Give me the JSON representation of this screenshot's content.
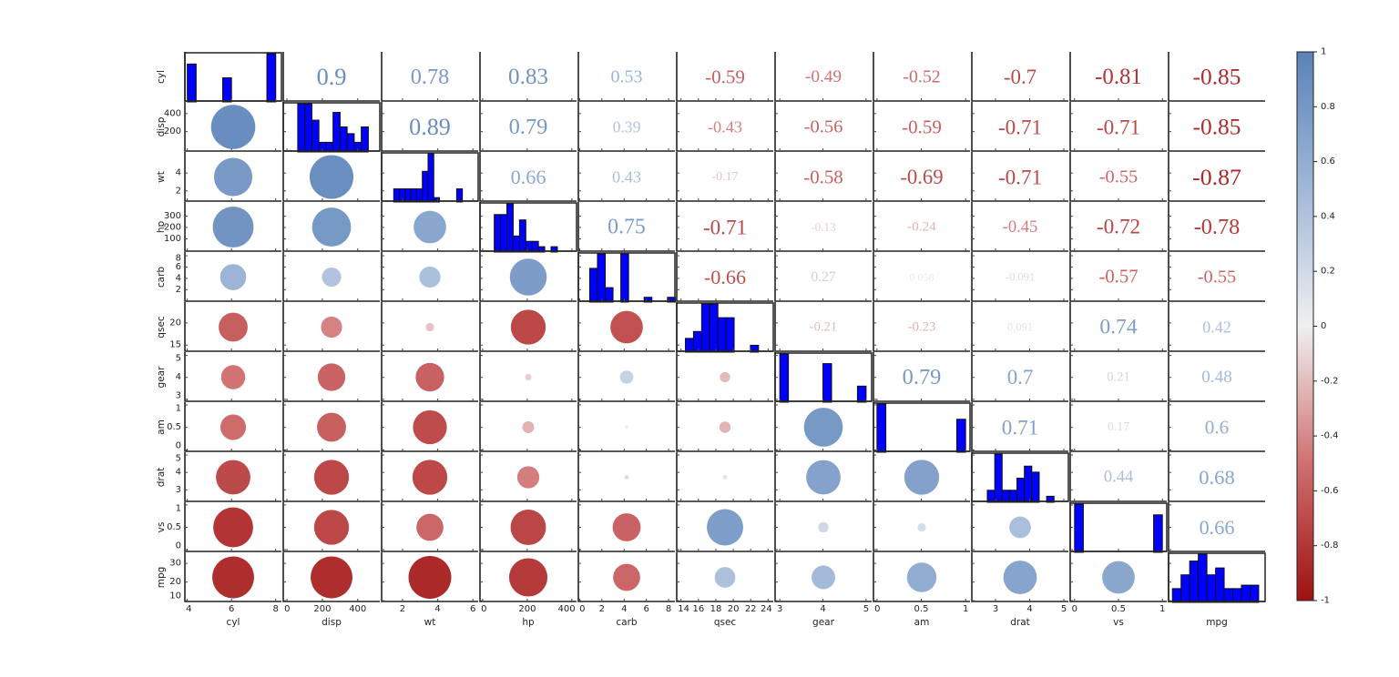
{
  "chart_data": {
    "type": "correlation-matrix",
    "variables": [
      {
        "name": "cyl",
        "range": [
          3.85,
          8.3
        ],
        "xticks": [
          "4",
          "6",
          "8"
        ],
        "yticks": [],
        "hist": {
          "from": 4,
          "to": 8,
          "counts": [
            11,
            0,
            0,
            0,
            7,
            0,
            0,
            0,
            0,
            14
          ]
        }
      },
      {
        "name": "disp",
        "range": [
          -26,
          530
        ],
        "xticks": [
          "0",
          "200",
          "400"
        ],
        "yticks": [
          "200",
          "400"
        ],
        "hist": {
          "from": 61,
          "to": 460,
          "counts": [
            5,
            5,
            3.3,
            1,
            1,
            4.1,
            2.6,
            1.9,
            1,
            2.6
          ]
        }
      },
      {
        "name": "wt",
        "range": [
          0.76,
          6.35
        ],
        "xticks": [
          "2",
          "4",
          "6"
        ],
        "yticks": [
          "2",
          "4"
        ],
        "hist": {
          "from": 1.5,
          "to": 5.4,
          "counts": [
            3,
            3,
            3,
            3,
            3,
            7,
            11,
            1,
            0,
            0,
            0,
            3
          ]
        }
      },
      {
        "name": "hp",
        "range": [
          -16,
          425
        ],
        "xticks": [
          "0",
          "200",
          "400"
        ],
        "yticks": [
          "100",
          "200",
          "300"
        ],
        "hist": {
          "from": 52,
          "to": 335,
          "counts": [
            7,
            7,
            9,
            3,
            6,
            2,
            2,
            1,
            0,
            1
          ]
        }
      },
      {
        "name": "carb",
        "range": [
          -0.2,
          8.65
        ],
        "xticks": [
          "0",
          "2",
          "4",
          "6",
          "8"
        ],
        "yticks": [
          "2",
          "4",
          "6",
          "8"
        ],
        "hist": {
          "from": 0.9,
          "to": 8.6,
          "counts": [
            7,
            10,
            3,
            0,
            10,
            0,
            0,
            1,
            0,
            0,
            1
          ]
        }
      },
      {
        "name": "qsec",
        "range": [
          13.4,
          24.7
        ],
        "xticks": [
          "14",
          "16",
          "18",
          "20",
          "22",
          "24"
        ],
        "yticks": [
          "15",
          "20"
        ],
        "hist": {
          "from": 14.5,
          "to": 22.9,
          "counts": [
            2,
            3,
            7,
            7,
            5,
            5,
            0,
            0,
            1
          ]
        }
      },
      {
        "name": "gear",
        "range": [
          2.87,
          5.15
        ],
        "xticks": [
          "3",
          "4",
          "5"
        ],
        "yticks": [
          "3",
          "4",
          "5"
        ],
        "hist": {
          "from": 3,
          "to": 5,
          "counts": [
            15,
            0,
            0,
            0,
            0,
            12,
            0,
            0,
            0,
            5
          ]
        }
      },
      {
        "name": "am",
        "range": [
          -0.05,
          1.06
        ],
        "xticks": [
          "0",
          "0.5",
          "1"
        ],
        "yticks": [
          "0",
          "0.5",
          "1"
        ],
        "hist": {
          "from": 0,
          "to": 1,
          "counts": [
            19,
            0,
            0,
            0,
            0,
            0,
            0,
            0,
            0,
            13
          ]
        }
      },
      {
        "name": "drat",
        "range": [
          2.28,
          5.16
        ],
        "xticks": [
          "3",
          "4",
          "5"
        ],
        "yticks": [
          "3",
          "4",
          "5"
        ],
        "hist": {
          "from": 2.76,
          "to": 4.93,
          "counts": [
            2,
            8,
            2,
            2,
            4,
            6,
            5,
            0,
            1,
            0
          ]
        }
      },
      {
        "name": "vs",
        "range": [
          -0.06,
          1.06
        ],
        "xticks": [
          "0",
          "0.5",
          "1"
        ],
        "yticks": [
          "0",
          "0.5",
          "1"
        ],
        "hist": {
          "from": 0,
          "to": 1,
          "counts": [
            18,
            0,
            0,
            0,
            0,
            0,
            0,
            0,
            0,
            14
          ]
        }
      },
      {
        "name": "mpg",
        "range": [
          9.1,
          35.9
        ],
        "xticks": [],
        "yticks": [
          "10",
          "20",
          "30"
        ],
        "hist": {
          "from": 10.4,
          "to": 33.9,
          "counts": [
            2,
            4,
            6,
            7,
            4,
            5,
            2,
            2,
            2.5,
            2.5
          ]
        }
      }
    ],
    "correlations": [
      [
        1,
        0.9,
        0.78,
        0.83,
        0.53,
        -0.59,
        -0.49,
        -0.52,
        -0.7,
        -0.81,
        -0.85
      ],
      [
        0.9,
        1,
        0.89,
        0.79,
        0.39,
        -0.43,
        -0.56,
        -0.59,
        -0.71,
        -0.71,
        -0.85
      ],
      [
        0.78,
        0.89,
        1,
        0.66,
        0.43,
        -0.17,
        -0.58,
        -0.69,
        -0.71,
        -0.55,
        -0.87
      ],
      [
        0.83,
        0.79,
        0.66,
        1,
        0.75,
        -0.71,
        -0.13,
        -0.24,
        -0.45,
        -0.72,
        -0.78
      ],
      [
        0.53,
        0.39,
        0.43,
        0.75,
        1,
        -0.66,
        0.27,
        0.058,
        -0.091,
        -0.57,
        -0.55
      ],
      [
        -0.59,
        -0.43,
        -0.17,
        -0.71,
        -0.66,
        1,
        -0.21,
        -0.23,
        0.091,
        0.74,
        0.42
      ],
      [
        -0.49,
        -0.56,
        -0.58,
        -0.13,
        0.27,
        -0.21,
        1,
        0.79,
        0.7,
        0.21,
        0.48
      ],
      [
        -0.52,
        -0.59,
        -0.69,
        -0.24,
        0.058,
        -0.23,
        0.79,
        1,
        0.71,
        0.17,
        0.6
      ],
      [
        -0.7,
        -0.71,
        -0.71,
        -0.45,
        -0.091,
        0.091,
        0.7,
        0.71,
        1,
        0.44,
        0.68
      ],
      [
        -0.81,
        -0.71,
        -0.55,
        -0.72,
        -0.57,
        0.74,
        0.21,
        0.17,
        0.44,
        1,
        0.66
      ],
      [
        -0.85,
        -0.85,
        -0.87,
        -0.78,
        -0.55,
        0.42,
        0.48,
        0.6,
        0.68,
        0.66,
        1
      ]
    ],
    "colorbar": {
      "range": [
        -1,
        1
      ],
      "ticks": [
        "1",
        "0.8",
        "0.6",
        "0.4",
        "0.2",
        "0",
        "-0.2",
        "-0.4",
        "-0.6",
        "-0.8",
        "-1"
      ]
    },
    "colors": {
      "negative": "#a01010",
      "neg_mid": "#d07070",
      "zero": "#f0f0f0",
      "pos_mid": "#a0b8d8",
      "positive": "#5a82b8",
      "histogram": "#0000ff"
    },
    "grid": false
  }
}
